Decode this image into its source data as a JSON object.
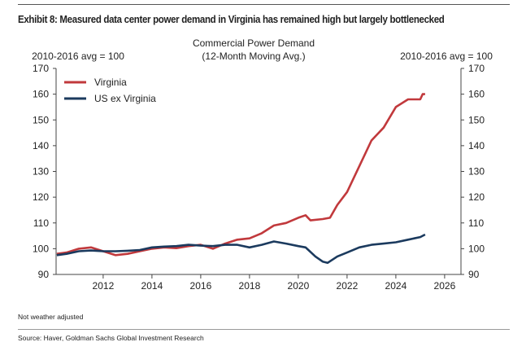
{
  "title": "Exhibit 8: Measured data center power demand in Virginia has remained high but largely bottlenecked",
  "note": "Not weather adjusted",
  "source": "Source: Haver, Goldman Sachs Global Investment Research",
  "chart_data": {
    "type": "line",
    "title": "Commercial Power Demand",
    "subtitle": "(12-Month Moving Avg.)",
    "ylabel_left": "2010-2016 avg = 100",
    "ylabel_right": "2010-2016 avg = 100",
    "xlim": [
      2010.07,
      2026.67
    ],
    "ylim": [
      90,
      170
    ],
    "xticks": [
      2012,
      2014,
      2016,
      2018,
      2020,
      2022,
      2024,
      2026
    ],
    "yticks": [
      90,
      100,
      110,
      120,
      130,
      140,
      150,
      160,
      170
    ],
    "grid": false,
    "legend_position": "top-left",
    "series": [
      {
        "name": "Virginia",
        "color": "#c1393c",
        "x": [
          2010.1,
          2010.5,
          2011,
          2011.5,
          2012,
          2012.5,
          2013,
          2013.5,
          2014,
          2014.5,
          2015,
          2015.5,
          2016,
          2016.5,
          2017,
          2017.5,
          2018,
          2018.5,
          2019,
          2019.5,
          2020,
          2020.3,
          2020.5,
          2021,
          2021.3,
          2021.6,
          2022,
          2022.5,
          2023,
          2023.5,
          2024,
          2024.5,
          2025,
          2025.1,
          2025.2
        ],
        "values": [
          98,
          98.5,
          100,
          100.5,
          99,
          97.5,
          98,
          99,
          100,
          100.5,
          100.2,
          101,
          101.5,
          100,
          102,
          103.5,
          104,
          106,
          109,
          110,
          112,
          113,
          111,
          111.5,
          112,
          117,
          122,
          132,
          142,
          147,
          155,
          158,
          158,
          160,
          160
        ]
      },
      {
        "name": "US ex Virginia",
        "color": "#1b3a5e",
        "x": [
          2010.1,
          2010.5,
          2011,
          2011.5,
          2012,
          2012.5,
          2013,
          2013.5,
          2014,
          2014.5,
          2015,
          2015.5,
          2016,
          2016.5,
          2017,
          2017.5,
          2018,
          2018.5,
          2019,
          2019.5,
          2020,
          2020.3,
          2020.7,
          2021,
          2021.2,
          2021.6,
          2022,
          2022.5,
          2023,
          2023.5,
          2024,
          2024.5,
          2025,
          2025.2
        ],
        "values": [
          97.5,
          98,
          99,
          99.3,
          99,
          99,
          99.2,
          99.5,
          100.5,
          100.8,
          101,
          101.5,
          101.2,
          101,
          101.5,
          101.5,
          100.5,
          101.5,
          102.8,
          102,
          101,
          100.5,
          97,
          95,
          94.5,
          97,
          98.5,
          100.5,
          101.5,
          102,
          102.5,
          103.5,
          104.5,
          105.5
        ]
      }
    ]
  }
}
